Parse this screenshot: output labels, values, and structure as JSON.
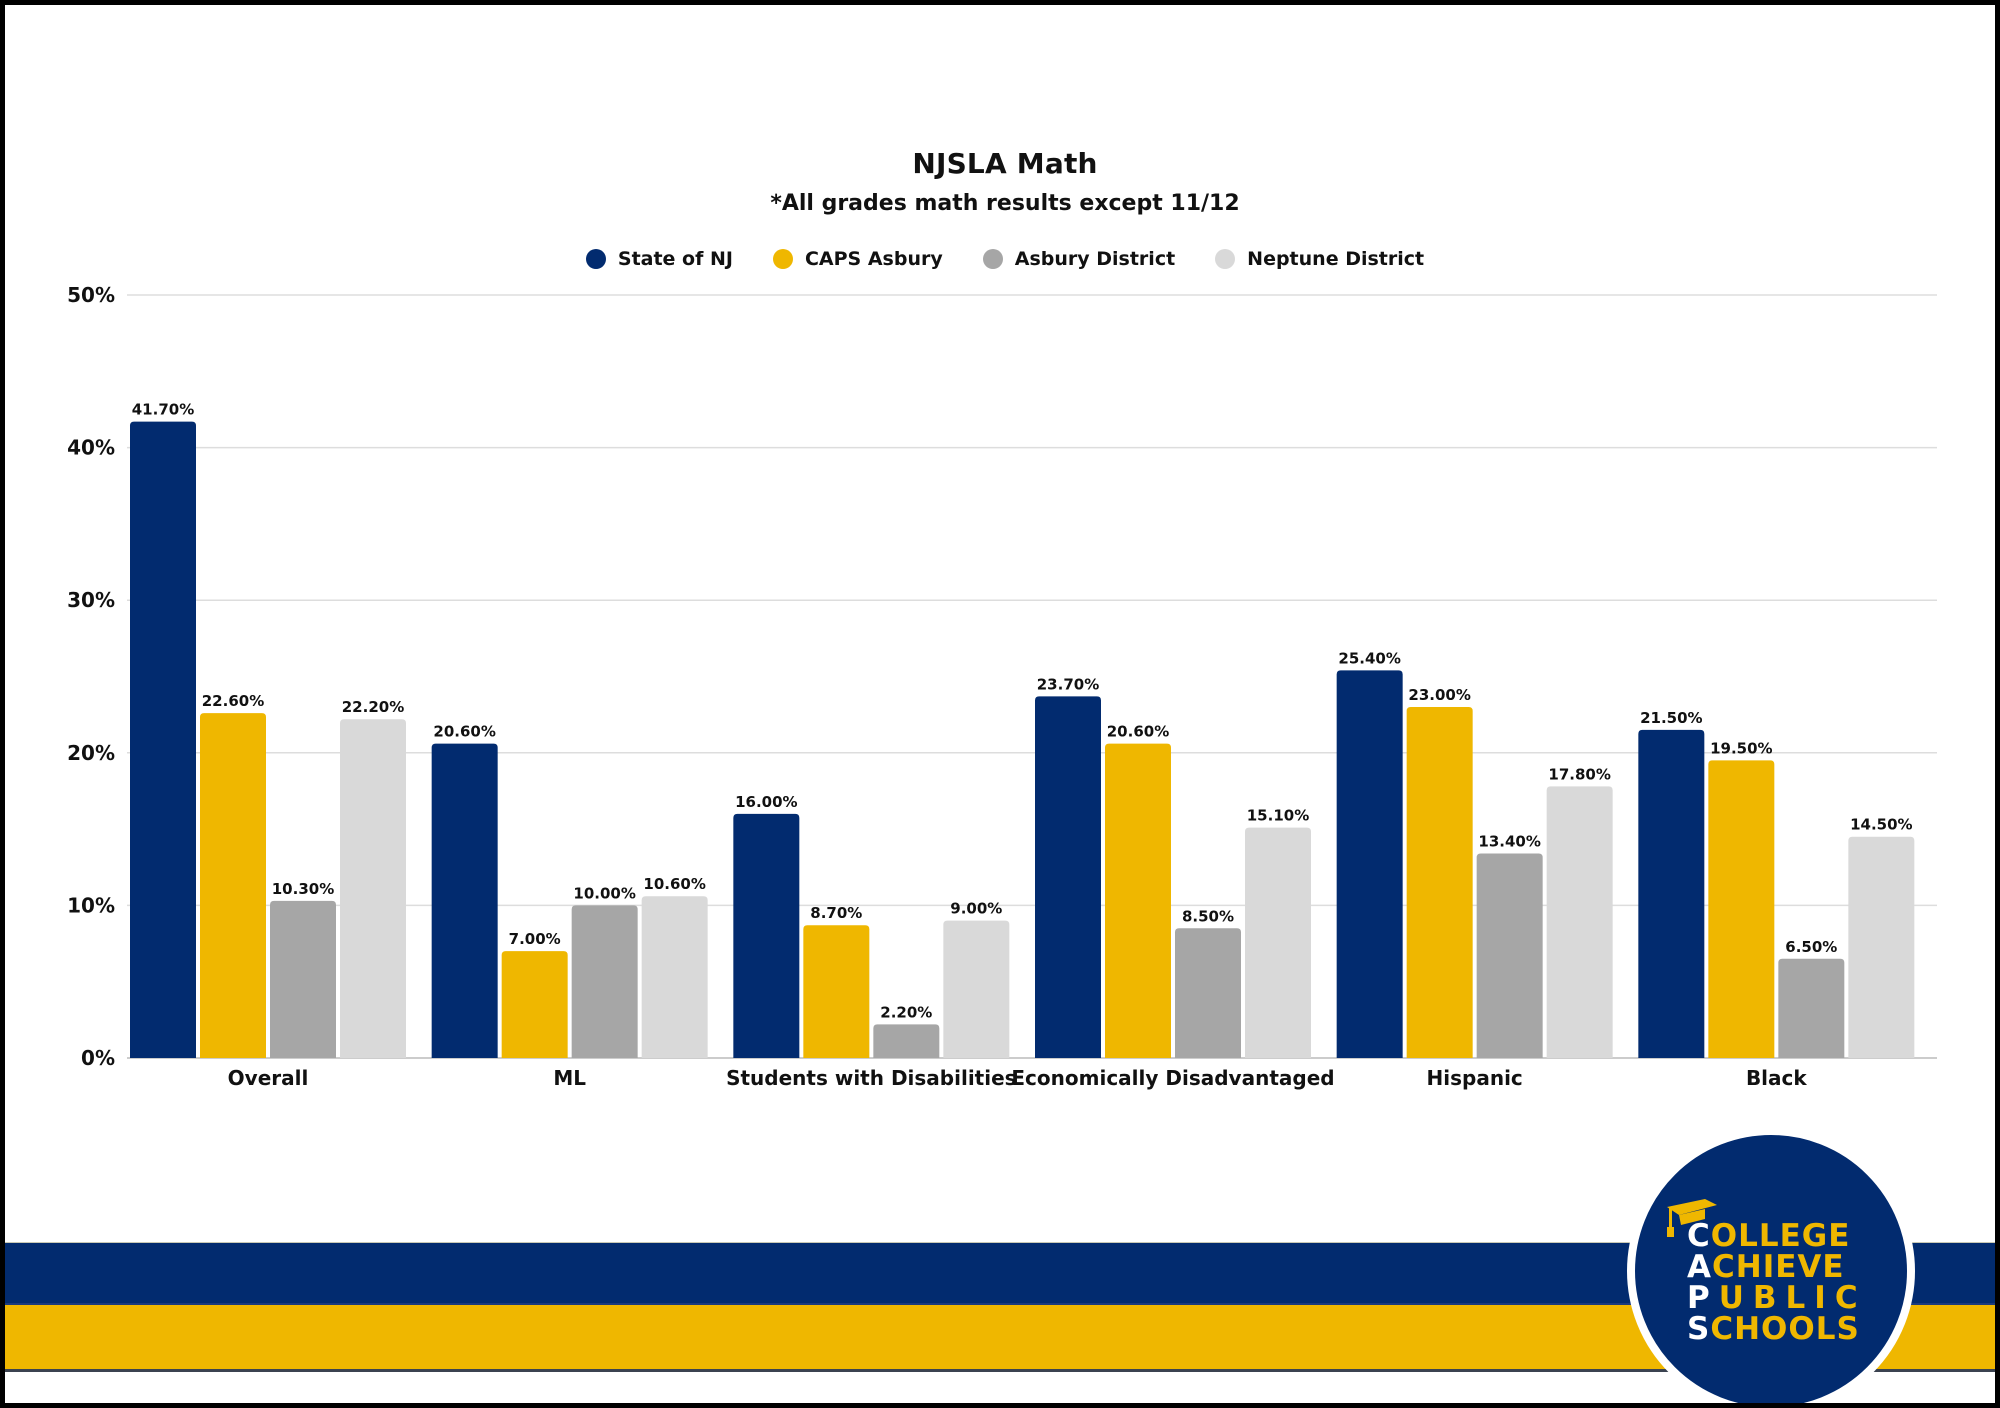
{
  "colors": {
    "state_nj": "#022b6f",
    "caps_asbury": "#efb700",
    "asbury_district": "#a6a6a6",
    "neptune_district": "#d9d9d9",
    "gridline": "#dddddd",
    "text": "#111111"
  },
  "chart_data": {
    "type": "bar",
    "title": "NJSLA Math",
    "subtitle": "*All grades math results except 11/12",
    "xlabel": "",
    "ylabel": "",
    "ylim": [
      0,
      50
    ],
    "yticks": [
      0,
      10,
      20,
      30,
      40,
      50
    ],
    "ytick_labels": [
      "0%",
      "10%",
      "20%",
      "30%",
      "40%",
      "50%"
    ],
    "grid": true,
    "legend_position": "top-center",
    "categories": [
      "Overall",
      "ML",
      "Students with Disabilities",
      "Economically Disadvantaged",
      "Hispanic",
      "Black"
    ],
    "series": [
      {
        "name": "State of NJ",
        "color": "#022b6f",
        "values": [
          41.7,
          20.6,
          16.0,
          23.7,
          25.4,
          21.5
        ],
        "labels": [
          "41.70%",
          "20.60%",
          "16.00%",
          "23.70%",
          "25.40%",
          "21.50%"
        ]
      },
      {
        "name": "CAPS Asbury",
        "color": "#efb700",
        "values": [
          22.6,
          7.0,
          8.7,
          20.6,
          23.0,
          19.5
        ],
        "labels": [
          "22.60%",
          "7.00%",
          "8.70%",
          "20.60%",
          "23.00%",
          "19.50%"
        ]
      },
      {
        "name": "Asbury District",
        "color": "#a6a6a6",
        "values": [
          10.3,
          10.0,
          2.2,
          8.5,
          13.4,
          6.5
        ],
        "labels": [
          "10.30%",
          "10.00%",
          "2.20%",
          "8.50%",
          "13.40%",
          "6.50%"
        ]
      },
      {
        "name": "Neptune District",
        "color": "#d9d9d9",
        "values": [
          22.2,
          10.6,
          9.0,
          15.1,
          17.8,
          14.5
        ],
        "labels": [
          "22.20%",
          "10.60%",
          "9.00%",
          "15.10%",
          "17.80%",
          "14.50%"
        ]
      }
    ]
  },
  "logo": {
    "lines": [
      {
        "initial": "C",
        "rest": "OLLEGE"
      },
      {
        "initial": "A",
        "rest": "CHIEVE"
      },
      {
        "initial": "P",
        "rest": "UBLIC"
      },
      {
        "initial": "S",
        "rest": "CHOOLS"
      }
    ],
    "icon": "graduation-cap-icon"
  }
}
